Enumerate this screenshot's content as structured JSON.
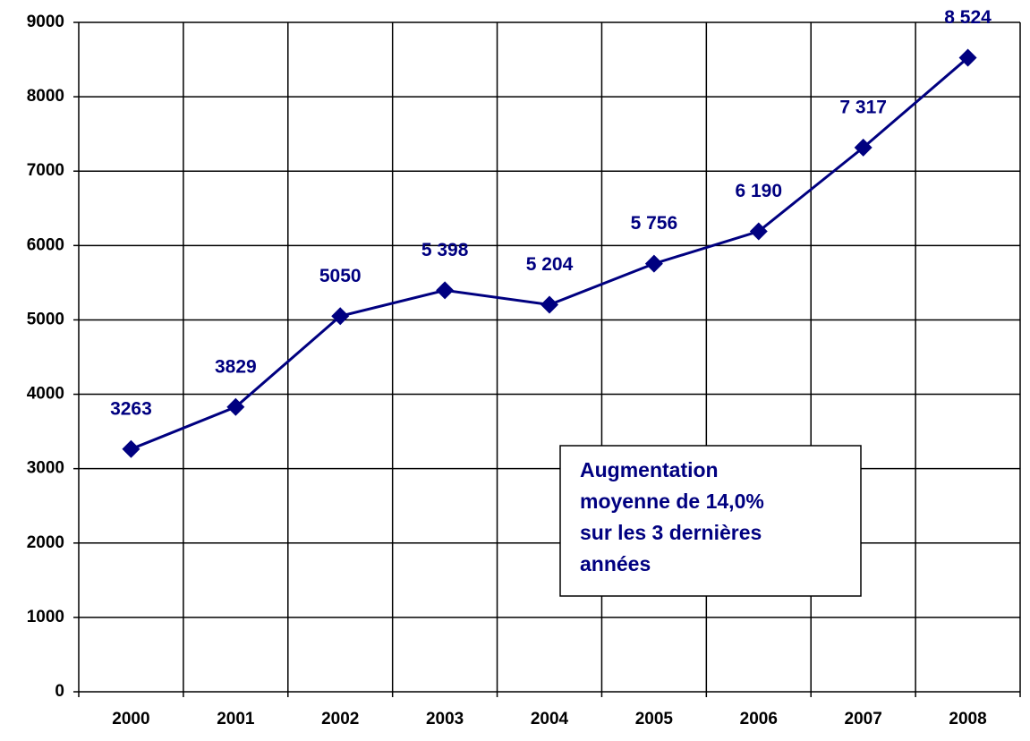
{
  "chart_data": {
    "type": "line",
    "categories": [
      "2000",
      "2001",
      "2002",
      "2003",
      "2004",
      "2005",
      "2006",
      "2007",
      "2008"
    ],
    "values": [
      3263,
      3829,
      5050,
      5398,
      5204,
      5756,
      6190,
      7317,
      8524
    ],
    "value_labels": [
      "3263",
      "3829",
      "5050",
      "5 398",
      "5 204",
      "5 756",
      "6 190",
      "7 317",
      "8 524"
    ],
    "color": "#000080",
    "ylim": [
      0,
      9000
    ],
    "yticks": [
      0,
      1000,
      2000,
      3000,
      4000,
      5000,
      6000,
      7000,
      8000,
      9000
    ],
    "grid": true,
    "annotation": [
      "Augmentation",
      "moyenne de 14,0%",
      "sur les 3 dernières",
      "années"
    ]
  }
}
